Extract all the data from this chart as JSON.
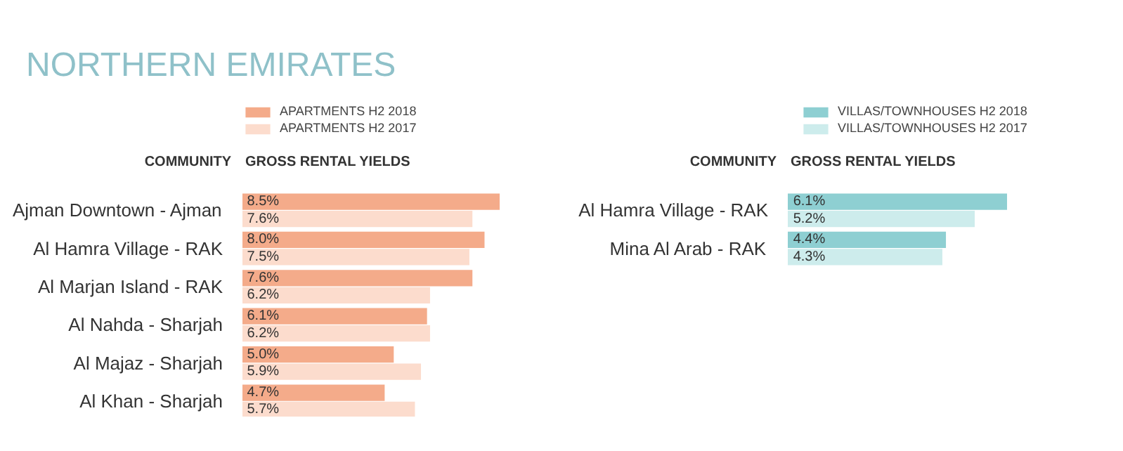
{
  "chart_data": [
    {
      "type": "bar",
      "orientation": "horizontal",
      "title": "NORTHERN EMIRATES",
      "ylabel": "COMMUNITY",
      "xlabel": "GROSS RENTAL YIELDS",
      "legend": "top left",
      "tick_labels": "y",
      "categories": [
        "Ajman Downtown - Ajman",
        "Al Hamra Village - RAK",
        "Al Marjan Island - RAK",
        "Al Nahda - Sharjah",
        "Al Majaz - Sharjah",
        "Al Khan - Sharjah"
      ],
      "series": [
        {
          "name": "APARTMENTS H2 2018",
          "color": "#f4ab8a",
          "values": [
            8.5,
            8.0,
            7.6,
            6.1,
            5.0,
            4.7
          ],
          "value_labels": [
            "8.5%",
            "8.0%",
            "7.6%",
            "6.1%",
            "5.0%",
            "4.7%"
          ]
        },
        {
          "name": "APARTMENTS H2 2017",
          "color": "#fcdccd",
          "values": [
            7.6,
            7.5,
            6.2,
            6.2,
            5.9,
            5.7
          ],
          "value_labels": [
            "7.6%",
            "7.5%",
            "6.2%",
            "6.2%",
            "5.9%",
            "5.7%"
          ]
        }
      ]
    },
    {
      "type": "bar",
      "orientation": "horizontal",
      "ylabel": "COMMUNITY",
      "xlabel": "GROSS RENTAL YIELDS",
      "legend": "top right",
      "tick_labels": "y",
      "categories": [
        "Al Hamra Village - RAK",
        "Mina Al Arab - RAK"
      ],
      "series": [
        {
          "name": "VILLAS/TOWNHOUSES H2 2018",
          "color": "#8ecfd2",
          "values": [
            6.1,
            4.4
          ],
          "value_labels": [
            "6.1%",
            "4.4%"
          ]
        },
        {
          "name": "VILLAS/TOWNHOUSES H2 2017",
          "color": "#cdecec",
          "values": [
            5.2,
            4.3
          ],
          "value_labels": [
            "5.2%",
            "4.3%"
          ]
        }
      ]
    }
  ]
}
